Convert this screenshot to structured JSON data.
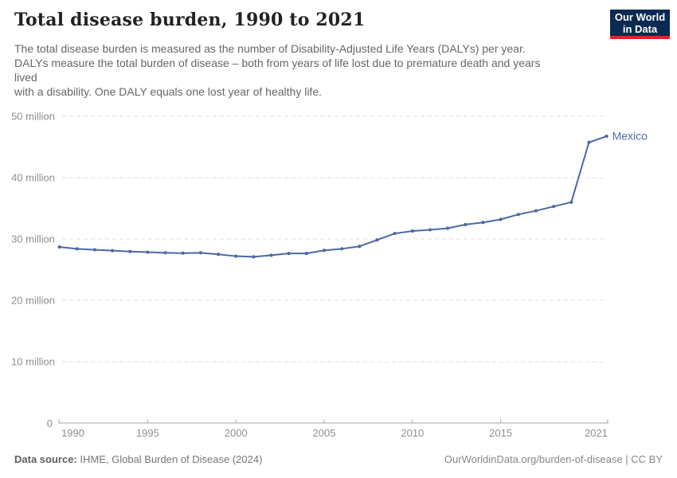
{
  "header": {
    "title": "Total disease burden, 1990 to 2021",
    "subtitle": "The total disease burden is measured as the number of Disability-Adjusted Life Years (DALYs) per year.\nDALYs measure the total burden of disease – both from years of life lost due to premature death and years\nlived\nwith a disability. One DALY equals one lost year of healthy life."
  },
  "logo": {
    "line1": "Our World",
    "line2": "in Data",
    "bg_color": "#0b2a52",
    "stripe_color": "#d32b23"
  },
  "footer": {
    "source_label": "Data source:",
    "source_value": "IHME, Global Burden of Disease (2024)",
    "right_text": "OurWorldinData.org/burden-of-disease | CC BY"
  },
  "chart_data": {
    "type": "line",
    "title": "Total disease burden, 1990 to 2021",
    "y_unit": "million DALYs",
    "grid": true,
    "legend_position": "end-of-line",
    "ylim": [
      0,
      50
    ],
    "x": [
      1990,
      1991,
      1992,
      1993,
      1994,
      1995,
      1996,
      1997,
      1998,
      1999,
      2000,
      2001,
      2002,
      2003,
      2004,
      2005,
      2006,
      2007,
      2008,
      2009,
      2010,
      2011,
      2012,
      2013,
      2014,
      2015,
      2016,
      2017,
      2018,
      2019,
      2020,
      2021
    ],
    "series": [
      {
        "name": "Mexico",
        "color": "#4a69a3",
        "values": [
          28.7,
          28.4,
          28.25,
          28.1,
          27.95,
          27.85,
          27.75,
          27.7,
          27.75,
          27.5,
          27.2,
          27.1,
          27.35,
          27.65,
          27.65,
          28.15,
          28.4,
          28.8,
          29.85,
          30.9,
          31.3,
          31.5,
          31.75,
          32.35,
          32.7,
          33.2,
          34.0,
          34.6,
          35.3,
          36.0,
          45.75,
          46.75
        ]
      }
    ],
    "yticks": [
      {
        "value": 0,
        "label": "0"
      },
      {
        "value": 10,
        "label": "10 million"
      },
      {
        "value": 20,
        "label": "20 million"
      },
      {
        "value": 30,
        "label": "30 million"
      },
      {
        "value": 40,
        "label": "40 million"
      },
      {
        "value": 50,
        "label": "50 million"
      }
    ],
    "xticks": [
      {
        "year": 1990,
        "label": "1990"
      },
      {
        "year": 1995,
        "label": "1995"
      },
      {
        "year": 2000,
        "label": "2000"
      },
      {
        "year": 2005,
        "label": "2005"
      },
      {
        "year": 2010,
        "label": "2010"
      },
      {
        "year": 2015,
        "label": "2015"
      },
      {
        "year": 2021,
        "label": "2021"
      }
    ]
  }
}
